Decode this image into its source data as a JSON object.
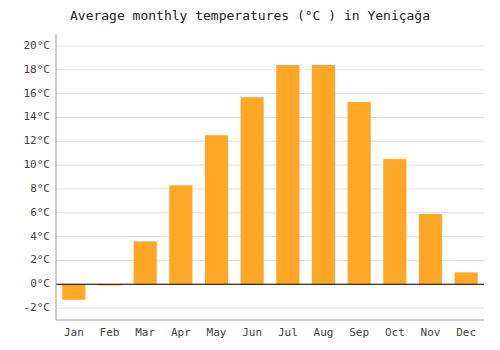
{
  "chart_data": {
    "type": "bar",
    "title": "Average monthly temperatures (°C ) in Yeniçağa",
    "categories": [
      "Jan",
      "Feb",
      "Mar",
      "Apr",
      "May",
      "Jun",
      "Jul",
      "Aug",
      "Sep",
      "Oct",
      "Nov",
      "Dec"
    ],
    "values": [
      -1.3,
      -0.1,
      3.6,
      8.3,
      12.5,
      15.7,
      18.4,
      18.4,
      15.3,
      10.5,
      5.9,
      1.0
    ],
    "color": "#FFA726",
    "ylim": [
      -3,
      21
    ],
    "yticks": [
      {
        "value": -2,
        "label": "-2°C"
      },
      {
        "value": 0,
        "label": "0°C"
      },
      {
        "value": 2,
        "label": "2°C"
      },
      {
        "value": 4,
        "label": "4°C"
      },
      {
        "value": 6,
        "label": "6°C"
      },
      {
        "value": 8,
        "label": "8°C"
      },
      {
        "value": 10,
        "label": "10°C"
      },
      {
        "value": 12,
        "label": "12°C"
      },
      {
        "value": 14,
        "label": "14°C"
      },
      {
        "value": 16,
        "label": "16°C"
      },
      {
        "value": 18,
        "label": "18°C"
      },
      {
        "value": 20,
        "label": "20°C"
      }
    ],
    "grid": true
  }
}
